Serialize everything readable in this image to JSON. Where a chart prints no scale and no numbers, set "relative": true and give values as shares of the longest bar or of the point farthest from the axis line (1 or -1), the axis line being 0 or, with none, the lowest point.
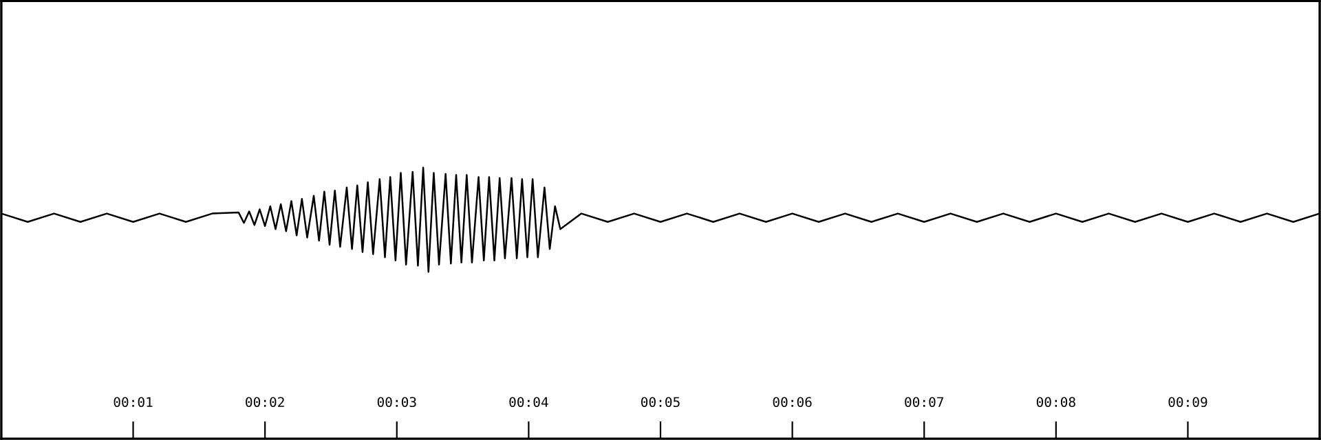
{
  "chart_data": {
    "type": "line",
    "relative": true,
    "xlim": [
      0,
      10
    ],
    "xticks": [
      {
        "value": 1,
        "label": "00:01"
      },
      {
        "value": 2,
        "label": "00:02"
      },
      {
        "value": 3,
        "label": "00:03"
      },
      {
        "value": 4,
        "label": "00:04"
      },
      {
        "value": 5,
        "label": "00:05"
      },
      {
        "value": 6,
        "label": "00:06"
      },
      {
        "value": 7,
        "label": "00:07"
      },
      {
        "value": 8,
        "label": "00:08"
      },
      {
        "value": 9,
        "label": "00:09"
      }
    ],
    "tick_labels": "x",
    "grid": false,
    "legend": false,
    "marker": "none",
    "line_style": "solid",
    "series": [
      {
        "color": "#000000",
        "x": [
          0,
          0.2,
          0.4,
          0.6,
          0.8,
          1.0,
          1.2,
          1.4,
          1.6,
          1.8,
          1.84,
          1.88,
          1.92,
          1.96,
          2.0,
          2.04,
          2.08,
          2.12,
          2.16,
          2.2,
          2.24,
          2.28,
          2.32,
          2.37,
          2.41,
          2.45,
          2.49,
          2.53,
          2.57,
          2.62,
          2.66,
          2.7,
          2.74,
          2.78,
          2.82,
          2.87,
          2.91,
          2.95,
          2.99,
          3.03,
          3.07,
          3.12,
          3.16,
          3.2,
          3.24,
          3.28,
          3.32,
          3.37,
          3.41,
          3.45,
          3.49,
          3.53,
          3.57,
          3.62,
          3.66,
          3.7,
          3.74,
          3.78,
          3.82,
          3.87,
          3.91,
          3.95,
          3.99,
          4.03,
          4.07,
          4.12,
          4.16,
          4.2,
          4.24,
          4.4,
          4.6,
          4.8,
          5.0,
          5.2,
          5.4,
          5.6,
          5.8,
          6.0,
          6.2,
          6.4,
          6.6,
          6.8,
          7.0,
          7.2,
          7.4,
          7.6,
          7.8,
          8.0,
          8.2,
          8.4,
          8.6,
          8.8,
          9.0,
          9.2,
          9.4,
          9.6,
          9.8,
          10.0
        ],
        "values": [
          0.56,
          0.48,
          0.56,
          0.48,
          0.56,
          0.48,
          0.56,
          0.48,
          0.56,
          0.57,
          0.47,
          0.58,
          0.45,
          0.6,
          0.44,
          0.63,
          0.41,
          0.65,
          0.39,
          0.68,
          0.35,
          0.7,
          0.33,
          0.73,
          0.3,
          0.77,
          0.26,
          0.78,
          0.24,
          0.81,
          0.22,
          0.83,
          0.19,
          0.86,
          0.17,
          0.89,
          0.14,
          0.91,
          0.11,
          0.95,
          0.07,
          0.96,
          0.06,
          1,
          0,
          0.95,
          0.07,
          0.94,
          0.08,
          0.93,
          0.09,
          0.93,
          0.09,
          0.91,
          0.11,
          0.91,
          0.11,
          0.9,
          0.13,
          0.9,
          0.13,
          0.89,
          0.14,
          0.89,
          0.14,
          0.81,
          0.22,
          0.63,
          0.41,
          0.56,
          0.48,
          0.56,
          0.48,
          0.56,
          0.48,
          0.56,
          0.48,
          0.56,
          0.48,
          0.56,
          0.48,
          0.56,
          0.48,
          0.56,
          0.48,
          0.56,
          0.48,
          0.56,
          0.48,
          0.56,
          0.48,
          0.56,
          0.48,
          0.56,
          0.48,
          0.56,
          0.48,
          0.56
        ]
      }
    ]
  }
}
